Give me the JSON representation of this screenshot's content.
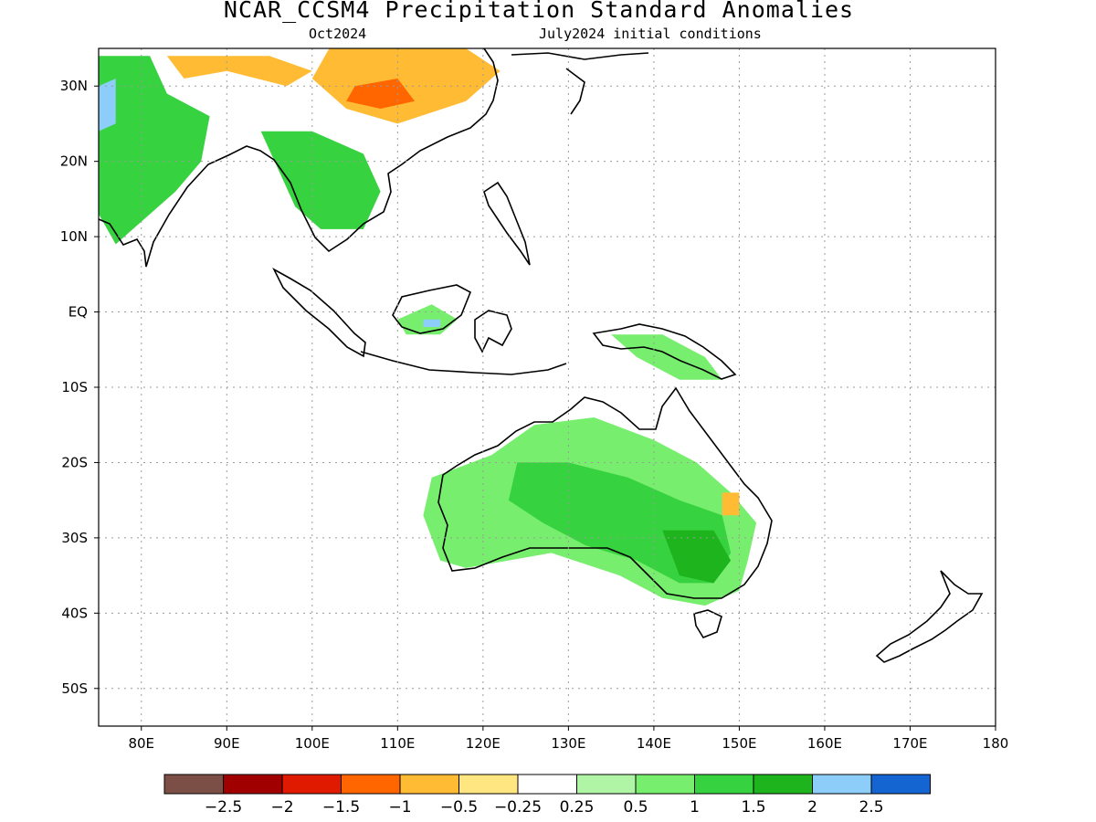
{
  "header": {
    "title": "NCAR_CCSM4 Precipitation Standard Anomalies",
    "target_month": "Oct2024",
    "init_conditions": "July2024 initial conditions"
  },
  "map": {
    "lon_range": [
      75,
      180
    ],
    "lat_range": [
      -55,
      35
    ],
    "lon_ticks": [
      {
        "value": 80,
        "label": "80E"
      },
      {
        "value": 90,
        "label": "90E"
      },
      {
        "value": 100,
        "label": "100E"
      },
      {
        "value": 110,
        "label": "110E"
      },
      {
        "value": 120,
        "label": "120E"
      },
      {
        "value": 130,
        "label": "130E"
      },
      {
        "value": 140,
        "label": "140E"
      },
      {
        "value": 150,
        "label": "150E"
      },
      {
        "value": 160,
        "label": "160E"
      },
      {
        "value": 170,
        "label": "170E"
      },
      {
        "value": 180,
        "label": "180"
      }
    ],
    "lat_ticks": [
      {
        "value": 30,
        "label": "30N"
      },
      {
        "value": 20,
        "label": "20N"
      },
      {
        "value": 10,
        "label": "10N"
      },
      {
        "value": 0,
        "label": "EQ"
      },
      {
        "value": -10,
        "label": "10S"
      },
      {
        "value": -20,
        "label": "20S"
      },
      {
        "value": -30,
        "label": "30S"
      },
      {
        "value": -40,
        "label": "40S"
      },
      {
        "value": -50,
        "label": "50S"
      }
    ],
    "grid": true,
    "grid_style": "dotted"
  },
  "colorbar": {
    "colors": [
      "#7b4f45",
      "#a00000",
      "#e01a00",
      "#ff6600",
      "#ffbb33",
      "#ffe680",
      "#ffffff",
      "#b0f5a5",
      "#78ee6e",
      "#37d23f",
      "#1eb41e",
      "#8ccdfa",
      "#1464d2"
    ],
    "labels": [
      "−2.5",
      "−2",
      "−1.5",
      "−1",
      "−0.5",
      "−0.25",
      "0.25",
      "0.5",
      "1",
      "1.5",
      "2",
      "2.5"
    ]
  },
  "anomaly_regions": [
    {
      "name": "india-northwest",
      "level": "1.5",
      "points": [
        [
          75,
          34
        ],
        [
          81,
          34
        ],
        [
          83,
          29
        ],
        [
          88,
          26
        ],
        [
          87,
          20
        ],
        [
          84,
          16
        ],
        [
          80,
          12
        ],
        [
          77,
          9
        ],
        [
          75,
          13
        ]
      ]
    },
    {
      "name": "india-west-wet",
      "level": "2.5",
      "points": [
        [
          75,
          30
        ],
        [
          77,
          31
        ],
        [
          77,
          25
        ],
        [
          75,
          24
        ]
      ]
    },
    {
      "name": "tibet-dry",
      "level": "-0.5",
      "points": [
        [
          83,
          34
        ],
        [
          95,
          34
        ],
        [
          100,
          32
        ],
        [
          97,
          30
        ],
        [
          90,
          32
        ],
        [
          85,
          31
        ]
      ]
    },
    {
      "name": "china-dry",
      "level": "-0.5",
      "points": [
        [
          102,
          35
        ],
        [
          118,
          35
        ],
        [
          122,
          32
        ],
        [
          118,
          28
        ],
        [
          110,
          25
        ],
        [
          104,
          27
        ],
        [
          100,
          31
        ]
      ]
    },
    {
      "name": "china-dry-core",
      "level": "-1",
      "points": [
        [
          105,
          30
        ],
        [
          110,
          31
        ],
        [
          112,
          28
        ],
        [
          108,
          27
        ],
        [
          104,
          28
        ]
      ]
    },
    {
      "name": "indochina-wet",
      "level": "1.5",
      "points": [
        [
          94,
          24
        ],
        [
          100,
          24
        ],
        [
          106,
          21
        ],
        [
          108,
          16
        ],
        [
          106,
          11
        ],
        [
          101,
          11
        ],
        [
          98,
          14
        ],
        [
          96,
          19
        ]
      ]
    },
    {
      "name": "borneo-wet",
      "level": "1",
      "points": [
        [
          110,
          -1
        ],
        [
          114,
          1
        ],
        [
          117,
          -1
        ],
        [
          115,
          -3
        ],
        [
          111,
          -3
        ]
      ]
    },
    {
      "name": "borneo-core",
      "level": "2.5",
      "points": [
        [
          113,
          -1
        ],
        [
          115,
          -1
        ],
        [
          115,
          -2
        ],
        [
          113,
          -2
        ]
      ]
    },
    {
      "name": "new-guinea-wet",
      "level": "1",
      "points": [
        [
          135,
          -3
        ],
        [
          141,
          -3
        ],
        [
          146,
          -6
        ],
        [
          148,
          -9
        ],
        [
          143,
          -9
        ],
        [
          138,
          -6
        ]
      ]
    },
    {
      "name": "australia-wet",
      "level": "1",
      "points": [
        [
          113,
          -27
        ],
        [
          114,
          -22
        ],
        [
          121,
          -19
        ],
        [
          126,
          -15
        ],
        [
          133,
          -14
        ],
        [
          140,
          -17
        ],
        [
          145,
          -20
        ],
        [
          149,
          -24
        ],
        [
          152,
          -28
        ],
        [
          151,
          -33
        ],
        [
          150,
          -37
        ],
        [
          146,
          -39
        ],
        [
          141,
          -38
        ],
        [
          136,
          -35
        ],
        [
          128,
          -32
        ],
        [
          118,
          -34
        ],
        [
          115,
          -33
        ]
      ]
    },
    {
      "name": "australia-core",
      "level": "1.5",
      "points": [
        [
          124,
          -20
        ],
        [
          130,
          -20
        ],
        [
          137,
          -22
        ],
        [
          143,
          -25
        ],
        [
          148,
          -27
        ],
        [
          149,
          -32
        ],
        [
          147,
          -36
        ],
        [
          143,
          -36
        ],
        [
          138,
          -33
        ],
        [
          132,
          -31
        ],
        [
          127,
          -28
        ],
        [
          123,
          -25
        ]
      ]
    },
    {
      "name": "australia-se-core",
      "level": "2",
      "points": [
        [
          141,
          -29
        ],
        [
          147,
          -29
        ],
        [
          149,
          -33
        ],
        [
          147,
          -36
        ],
        [
          143,
          -35
        ]
      ]
    },
    {
      "name": "australia-east-dry",
      "level": "-0.5",
      "points": [
        [
          148,
          -24
        ],
        [
          150,
          -24
        ],
        [
          150,
          -27
        ],
        [
          148,
          -27
        ]
      ]
    }
  ]
}
